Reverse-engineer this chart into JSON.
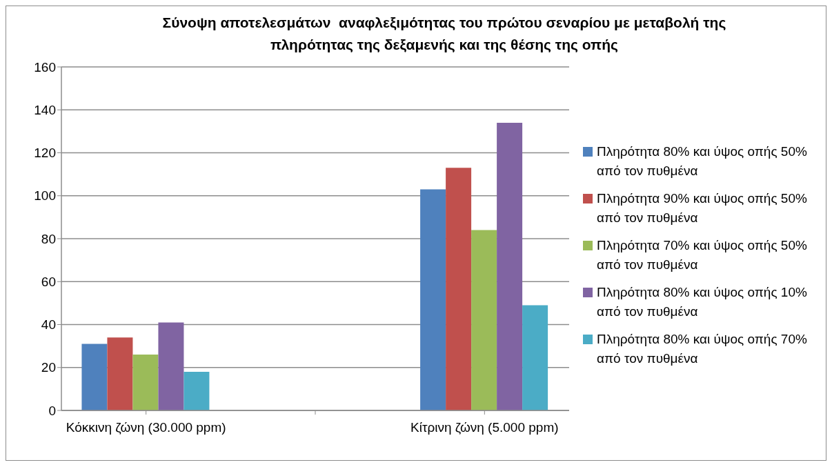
{
  "chart_data": {
    "type": "bar",
    "title": "Σύνοψη αποτελεσμάτων  αναφλεξιμότητας του πρώτου σεναρίου με μεταβολή της πληρότητας της δεξαμενής και της θέσης της οπής",
    "categories": [
      "Κόκκινη ζώνη (30.000 ppm)",
      null,
      "Κίτρινη ζώνη (5.000 ppm)"
    ],
    "series": [
      {
        "name": "Πληρότητα 80% και ύψος οπής 50% από τον πυθμένα",
        "color": "#4f81bd",
        "values": [
          31,
          null,
          103
        ]
      },
      {
        "name": "Πληρότητα 90% και ύψος οπής 50% από τον πυθμένα",
        "color": "#c0504d",
        "values": [
          34,
          null,
          113
        ]
      },
      {
        "name": "Πληρότητα 70% και ύψος οπής 50% από τον πυθμένα",
        "color": "#9bbb59",
        "values": [
          26,
          null,
          84
        ]
      },
      {
        "name": "Πληρότητα 80% και ύψος οπής 10% από τον πυθμένα",
        "color": "#8064a2",
        "values": [
          41,
          null,
          134
        ]
      },
      {
        "name": "Πληρότητα 80% και ύψος οπής 70% από τον πυθμένα",
        "color": "#4bacc6",
        "values": [
          18,
          null,
          49
        ]
      }
    ],
    "ylim": [
      0,
      160
    ],
    "yticks": [
      0,
      20,
      40,
      60,
      80,
      100,
      120,
      140,
      160
    ],
    "grid": "y",
    "legend": "right"
  }
}
